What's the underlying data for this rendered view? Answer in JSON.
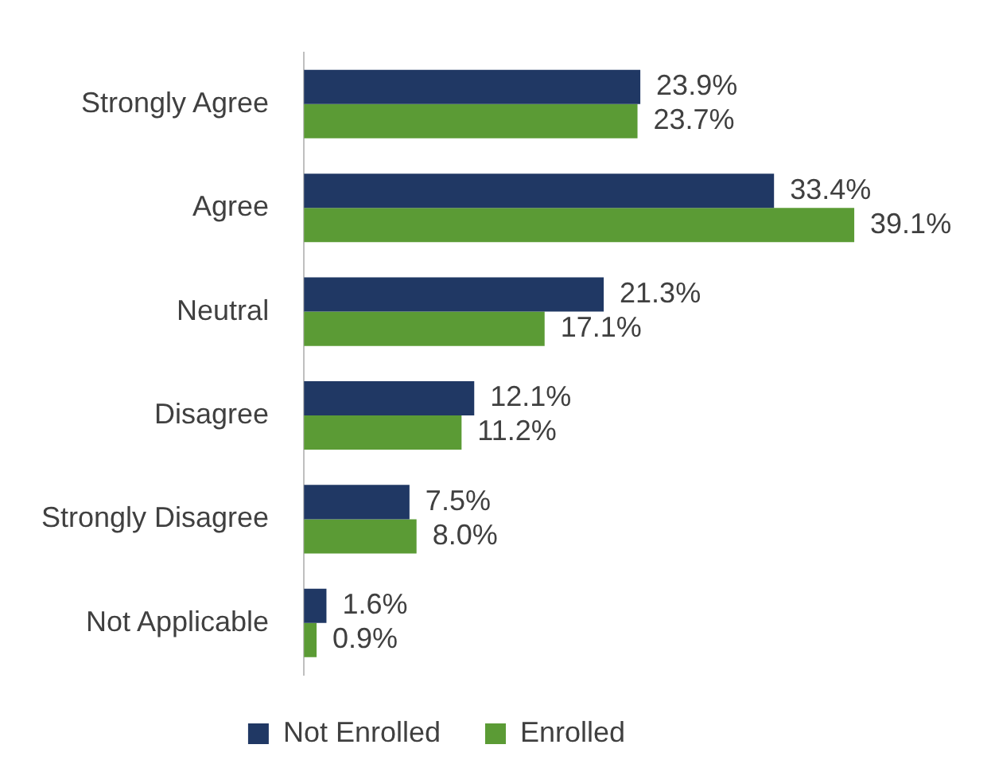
{
  "chart_data": {
    "type": "bar",
    "orientation": "horizontal",
    "categories": [
      "Strongly Agree",
      "Agree",
      "Neutral",
      "Disagree",
      "Strongly Disagree",
      "Not Applicable"
    ],
    "series": [
      {
        "name": "Not Enrolled",
        "color": "#203864",
        "values": [
          23.9,
          33.4,
          21.3,
          12.1,
          7.5,
          1.6
        ],
        "value_labels": [
          "23.9%",
          "33.4%",
          "21.3%",
          "12.1%",
          "7.5%",
          "1.6%"
        ]
      },
      {
        "name": "Enrolled",
        "color": "#5b9b35",
        "values": [
          23.7,
          39.1,
          17.1,
          11.2,
          8.0,
          0.9
        ],
        "value_labels": [
          "23.7%",
          "39.1%",
          "17.1%",
          "11.2%",
          "8.0%",
          "0.9%"
        ]
      }
    ],
    "legend": "bottom"
  }
}
